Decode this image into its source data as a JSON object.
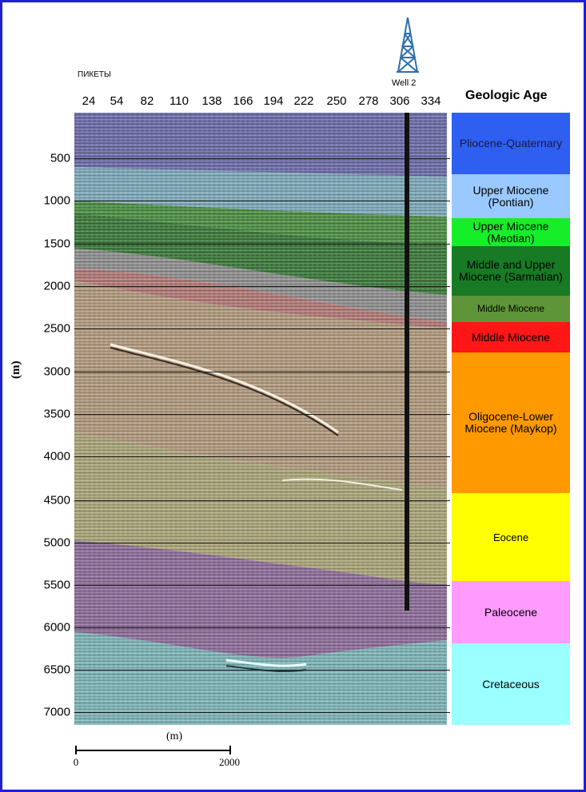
{
  "header": {
    "pikety_label": "ПИКЕТЫ",
    "well_label": "Well 2",
    "geologic_age_title": "Geologic Age"
  },
  "x_ticks": [
    "24",
    "54",
    "82",
    "110",
    "138",
    "166",
    "194",
    "222",
    "250",
    "278",
    "306",
    "334"
  ],
  "y_axis": {
    "unit_label": "(m)",
    "ticks": [
      "500",
      "1000",
      "1500",
      "2000",
      "2500",
      "3000",
      "3500",
      "4000",
      "4500",
      "5000",
      "5500",
      "6000",
      "6500",
      "7000"
    ]
  },
  "ages": [
    {
      "lines": [
        "Pliocene-Quaternary"
      ],
      "color": "#2f5ff0",
      "text_color": "#1a1a40"
    },
    {
      "lines": [
        "Upper Miocene",
        "(Pontian)"
      ],
      "color": "#99c9ff",
      "text_color": "#000000"
    },
    {
      "lines": [
        "Upper Miocene",
        "(Meotian)"
      ],
      "color": "#16ee2a",
      "text_color": "#000000"
    },
    {
      "lines": [
        "Middle and Upper",
        "Miocene (Sarmatian)"
      ],
      "color": "#187a24",
      "text_color": "#000000"
    },
    {
      "lines": [
        "Middle Miocene"
      ],
      "color": "#5e9538",
      "text_color": "#000000"
    },
    {
      "lines": [
        "Middle Miocene"
      ],
      "color": "#ff1616",
      "text_color": "#000000"
    },
    {
      "lines": [
        "Oligocene-Lower",
        "Miocene (Maykop)"
      ],
      "color": "#ff9900",
      "text_color": "#000000"
    },
    {
      "lines": [
        "Eocene"
      ],
      "color": "#ffff00",
      "text_color": "#000000"
    },
    {
      "lines": [
        "Paleocene"
      ],
      "color": "#ff9bff",
      "text_color": "#000000"
    },
    {
      "lines": [
        "Cretaceous"
      ],
      "color": "#9bffff",
      "text_color": "#000000"
    }
  ],
  "scale_bar": {
    "unit_label": "(m)",
    "start_label": "0",
    "end_label": "2000"
  },
  "colors": {
    "frame": "#1f1fd6"
  }
}
